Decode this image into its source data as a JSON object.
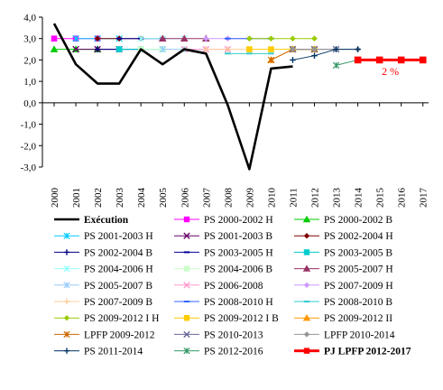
{
  "chart_data": {
    "type": "line",
    "title": "",
    "xlabel": "",
    "ylabel": "",
    "x": [
      2000,
      2001,
      2002,
      2003,
      2004,
      2005,
      2006,
      2007,
      2008,
      2009,
      2010,
      2011,
      2012,
      2013,
      2014,
      2015,
      2016,
      2017
    ],
    "x_tick_labels": [
      "2000",
      "2001",
      "2002",
      "2003",
      "2004",
      "2005",
      "2006",
      "2007",
      "2008",
      "2009",
      "2010",
      "2011",
      "2012",
      "2013",
      "2014",
      "2015",
      "2016",
      "2017"
    ],
    "ylim": [
      -3.0,
      4.0
    ],
    "y_ticks": [
      4.0,
      3.0,
      2.0,
      1.0,
      0.0,
      -1.0,
      -2.0,
      -3.0
    ],
    "y_tick_labels": [
      "4,0",
      "3,0",
      "2,0",
      "1,0",
      "0,0",
      "-1,0",
      "-2,0",
      "-3,0"
    ],
    "grid": false,
    "legend_position": "bottom",
    "legend_columns": 3,
    "annotations": [
      {
        "text": "2 %",
        "x": 2015.5,
        "y": 1.3,
        "color": "#ff0000"
      }
    ],
    "series": [
      {
        "name": "Exécution",
        "color": "#000000",
        "marker": "none",
        "width": 2.6,
        "points": [
          [
            2000,
            3.7
          ],
          [
            2001,
            1.8
          ],
          [
            2002,
            0.9
          ],
          [
            2003,
            0.9
          ],
          [
            2004,
            2.5
          ],
          [
            2005,
            1.8
          ],
          [
            2006,
            2.5
          ],
          [
            2007,
            2.3
          ],
          [
            2008,
            -0.1
          ],
          [
            2009,
            -3.1
          ],
          [
            2010,
            1.6
          ],
          [
            2011,
            1.7
          ]
        ]
      },
      {
        "name": "PS 2000-2002 H",
        "color": "#ff00ff",
        "marker": "square",
        "width": 1,
        "points": [
          [
            2000,
            3.0
          ],
          [
            2001,
            3.0
          ],
          [
            2002,
            3.0
          ]
        ]
      },
      {
        "name": "PS 2000-2002 B",
        "color": "#00cc00",
        "marker": "triangle",
        "width": 1,
        "points": [
          [
            2000,
            2.5
          ],
          [
            2001,
            2.5
          ],
          [
            2002,
            2.5
          ]
        ]
      },
      {
        "name": "PS 2001-2003 H",
        "color": "#00ccff",
        "marker": "xstar",
        "width": 1,
        "points": [
          [
            2001,
            3.0
          ],
          [
            2002,
            3.0
          ],
          [
            2003,
            3.0
          ]
        ]
      },
      {
        "name": "PS 2001-2003 B",
        "color": "#660066",
        "marker": "star",
        "width": 1,
        "points": [
          [
            2001,
            2.5
          ],
          [
            2002,
            2.5
          ],
          [
            2003,
            2.5
          ]
        ]
      },
      {
        "name": "PS 2002-2004 H",
        "color": "#800000",
        "marker": "diamond",
        "width": 1,
        "points": [
          [
            2002,
            3.0
          ],
          [
            2003,
            3.0
          ],
          [
            2004,
            3.0
          ]
        ]
      },
      {
        "name": "PS 2002-2004 B",
        "color": "#000080",
        "marker": "plus",
        "width": 1,
        "points": [
          [
            2002,
            2.5
          ],
          [
            2003,
            2.5
          ],
          [
            2004,
            2.5
          ]
        ]
      },
      {
        "name": "PS 2003-2005 H",
        "color": "#000099",
        "marker": "dash",
        "width": 1,
        "points": [
          [
            2003,
            3.0
          ],
          [
            2004,
            3.0
          ],
          [
            2005,
            3.0
          ]
        ]
      },
      {
        "name": "PS 2003-2005 B",
        "color": "#00cccc",
        "marker": "square",
        "width": 1,
        "points": [
          [
            2003,
            2.5
          ],
          [
            2004,
            2.5
          ],
          [
            2005,
            2.5
          ]
        ]
      },
      {
        "name": "PS 2004-2006 H",
        "color": "#99ffff",
        "marker": "xstar",
        "width": 1,
        "points": [
          [
            2004,
            3.0
          ],
          [
            2005,
            3.0
          ],
          [
            2006,
            3.0
          ]
        ]
      },
      {
        "name": "PS 2004-2006 B",
        "color": "#ccffcc",
        "marker": "square",
        "width": 1,
        "points": [
          [
            2004,
            2.5
          ],
          [
            2005,
            2.5
          ],
          [
            2006,
            2.5
          ]
        ]
      },
      {
        "name": "PS 2005-2007 H",
        "color": "#993366",
        "marker": "triangle",
        "width": 1,
        "points": [
          [
            2005,
            3.0
          ],
          [
            2006,
            3.0
          ],
          [
            2007,
            3.0
          ]
        ]
      },
      {
        "name": "PS 2005-2007 B",
        "color": "#99ccff",
        "marker": "xstar",
        "width": 1,
        "points": [
          [
            2005,
            2.5
          ],
          [
            2006,
            2.5
          ],
          [
            2007,
            2.5
          ]
        ]
      },
      {
        "name": "PS 2006-2008",
        "color": "#ff99cc",
        "marker": "star",
        "width": 1,
        "points": [
          [
            2006,
            2.5
          ],
          [
            2007,
            2.5
          ],
          [
            2008,
            2.5
          ]
        ]
      },
      {
        "name": "PS 2007-2009 H",
        "color": "#cc99ff",
        "marker": "diamond",
        "width": 1,
        "points": [
          [
            2007,
            3.0
          ],
          [
            2008,
            3.0
          ],
          [
            2009,
            3.0
          ]
        ]
      },
      {
        "name": "PS 2007-2009 B",
        "color": "#ffcc99",
        "marker": "plus",
        "width": 1,
        "points": [
          [
            2007,
            2.5
          ],
          [
            2008,
            2.5
          ],
          [
            2009,
            2.5
          ]
        ]
      },
      {
        "name": "PS 2008-2010 H",
        "color": "#3366ff",
        "marker": "dash",
        "width": 1,
        "points": [
          [
            2008,
            3.0
          ],
          [
            2009,
            3.0
          ],
          [
            2010,
            3.0
          ]
        ]
      },
      {
        "name": "PS 2008-2010 B",
        "color": "#33cccc",
        "marker": "dash",
        "width": 1,
        "points": [
          [
            2008,
            2.3
          ],
          [
            2009,
            2.3
          ],
          [
            2010,
            2.3
          ]
        ]
      },
      {
        "name": "PS 2009-2012 I H",
        "color": "#99cc00",
        "marker": "diamond",
        "width": 1,
        "points": [
          [
            2009,
            3.0
          ],
          [
            2010,
            3.0
          ],
          [
            2011,
            3.0
          ],
          [
            2012,
            3.0
          ]
        ]
      },
      {
        "name": "PS 2009-2012 I B",
        "color": "#ffcc00",
        "marker": "square",
        "width": 1,
        "points": [
          [
            2009,
            2.5
          ],
          [
            2010,
            2.5
          ],
          [
            2011,
            2.5
          ],
          [
            2012,
            2.5
          ]
        ]
      },
      {
        "name": "PS 2009-2012 II",
        "color": "#ff9900",
        "marker": "triangle",
        "width": 1,
        "points": [
          [
            2010,
            2.0
          ],
          [
            2011,
            2.5
          ],
          [
            2012,
            2.5
          ]
        ]
      },
      {
        "name": "LPFP 2009-2012",
        "color": "#cc6600",
        "marker": "xstar",
        "width": 1,
        "points": [
          [
            2010,
            2.0
          ],
          [
            2011,
            2.5
          ],
          [
            2012,
            2.5
          ]
        ]
      },
      {
        "name": "PS 2010-2013",
        "color": "#666699",
        "marker": "star",
        "width": 1,
        "points": [
          [
            2011,
            2.5
          ],
          [
            2012,
            2.5
          ],
          [
            2013,
            2.5
          ]
        ]
      },
      {
        "name": "LPFP 2010-2014",
        "color": "#969696",
        "marker": "diamond",
        "width": 1,
        "points": [
          [
            2011,
            2.5
          ],
          [
            2012,
            2.5
          ],
          [
            2013,
            2.5
          ],
          [
            2014,
            2.5
          ]
        ]
      },
      {
        "name": "PS 2011-2014",
        "color": "#003366",
        "marker": "plus",
        "width": 1,
        "points": [
          [
            2011,
            2.0
          ],
          [
            2012,
            2.2
          ],
          [
            2013,
            2.5
          ],
          [
            2014,
            2.5
          ]
        ]
      },
      {
        "name": "PS 2012-2016",
        "color": "#339966",
        "marker": "xstar",
        "width": 1,
        "points": [
          [
            2013,
            1.75
          ],
          [
            2014,
            2.0
          ],
          [
            2015,
            2.0
          ],
          [
            2016,
            2.0
          ]
        ]
      },
      {
        "name": "PJ LPFP 2012-2017",
        "color": "#ff0000",
        "marker": "square",
        "width": 3,
        "points": [
          [
            2014,
            2.0
          ],
          [
            2015,
            2.0
          ],
          [
            2016,
            2.0
          ],
          [
            2017,
            2.0
          ]
        ]
      }
    ]
  }
}
